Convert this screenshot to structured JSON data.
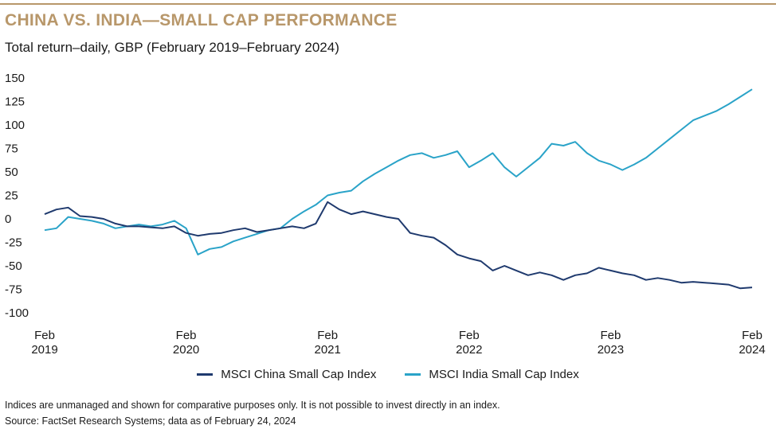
{
  "header": {
    "title": "CHINA VS. INDIA—SMALL CAP PERFORMANCE",
    "subtitle": "Total return–daily, GBP (February 2019–February 2024)"
  },
  "footer": {
    "note": "Indices are unmanaged and shown for comparative purposes only. It is not possible to invest directly in an index.",
    "source": "Source: FactSet Research Systems; data as of February 24, 2024"
  },
  "colors": {
    "china": "#1f3a6e",
    "india": "#2aa3c8",
    "title": "#b8976a"
  },
  "chart_data": {
    "type": "line",
    "title": "CHINA VS. INDIA—SMALL CAP PERFORMANCE",
    "subtitle": "Total return–daily, GBP (February 2019–February 2024)",
    "ylim": [
      -100,
      150
    ],
    "yticks": [
      150,
      125,
      100,
      75,
      50,
      25,
      0,
      -25,
      -50,
      -75,
      -100
    ],
    "xlim": [
      "2019-02",
      "2024-02"
    ],
    "xticks": [
      {
        "x": "2019-02",
        "line1": "Feb",
        "line2": "2019"
      },
      {
        "x": "2020-02",
        "line1": "Feb",
        "line2": "2020"
      },
      {
        "x": "2021-02",
        "line1": "Feb",
        "line2": "2021"
      },
      {
        "x": "2022-02",
        "line1": "Feb",
        "line2": "2022"
      },
      {
        "x": "2023-02",
        "line1": "Feb",
        "line2": "2023"
      },
      {
        "x": "2024-02",
        "line1": "Feb",
        "line2": "2024"
      }
    ],
    "grid": false,
    "legend": "bottom",
    "series": [
      {
        "name": "MSCI China Small Cap Index",
        "points": [
          [
            "2019-02",
            5
          ],
          [
            "2019-03",
            10
          ],
          [
            "2019-04",
            12
          ],
          [
            "2019-05",
            3
          ],
          [
            "2019-06",
            2
          ],
          [
            "2019-07",
            0
          ],
          [
            "2019-08",
            -5
          ],
          [
            "2019-09",
            -8
          ],
          [
            "2019-10",
            -8
          ],
          [
            "2019-11",
            -9
          ],
          [
            "2019-12",
            -10
          ],
          [
            "2020-01",
            -8
          ],
          [
            "2020-02",
            -15
          ],
          [
            "2020-03",
            -18
          ],
          [
            "2020-04",
            -16
          ],
          [
            "2020-05",
            -15
          ],
          [
            "2020-06",
            -12
          ],
          [
            "2020-07",
            -10
          ],
          [
            "2020-08",
            -14
          ],
          [
            "2020-09",
            -12
          ],
          [
            "2020-10",
            -10
          ],
          [
            "2020-11",
            -8
          ],
          [
            "2020-12",
            -10
          ],
          [
            "2021-01",
            -5
          ],
          [
            "2021-02",
            18
          ],
          [
            "2021-03",
            10
          ],
          [
            "2021-04",
            5
          ],
          [
            "2021-05",
            8
          ],
          [
            "2021-06",
            5
          ],
          [
            "2021-07",
            2
          ],
          [
            "2021-08",
            0
          ],
          [
            "2021-09",
            -15
          ],
          [
            "2021-10",
            -18
          ],
          [
            "2021-11",
            -20
          ],
          [
            "2021-12",
            -28
          ],
          [
            "2022-01",
            -38
          ],
          [
            "2022-02",
            -42
          ],
          [
            "2022-03",
            -45
          ],
          [
            "2022-04",
            -55
          ],
          [
            "2022-05",
            -50
          ],
          [
            "2022-06",
            -55
          ],
          [
            "2022-07",
            -60
          ],
          [
            "2022-08",
            -57
          ],
          [
            "2022-09",
            -60
          ],
          [
            "2022-10",
            -65
          ],
          [
            "2022-11",
            -60
          ],
          [
            "2022-12",
            -58
          ],
          [
            "2023-01",
            -52
          ],
          [
            "2023-02",
            -55
          ],
          [
            "2023-03",
            -58
          ],
          [
            "2023-04",
            -60
          ],
          [
            "2023-05",
            -65
          ],
          [
            "2023-06",
            -63
          ],
          [
            "2023-07",
            -65
          ],
          [
            "2023-08",
            -68
          ],
          [
            "2023-09",
            -67
          ],
          [
            "2023-10",
            -68
          ],
          [
            "2023-11",
            -69
          ],
          [
            "2023-12",
            -70
          ],
          [
            "2024-01",
            -74
          ],
          [
            "2024-02",
            -73
          ]
        ]
      },
      {
        "name": "MSCI India Small Cap Index",
        "points": [
          [
            "2019-02",
            -12
          ],
          [
            "2019-03",
            -10
          ],
          [
            "2019-04",
            2
          ],
          [
            "2019-05",
            0
          ],
          [
            "2019-06",
            -2
          ],
          [
            "2019-07",
            -5
          ],
          [
            "2019-08",
            -10
          ],
          [
            "2019-09",
            -8
          ],
          [
            "2019-10",
            -6
          ],
          [
            "2019-11",
            -8
          ],
          [
            "2019-12",
            -6
          ],
          [
            "2020-01",
            -2
          ],
          [
            "2020-02",
            -10
          ],
          [
            "2020-03",
            -38
          ],
          [
            "2020-04",
            -32
          ],
          [
            "2020-05",
            -30
          ],
          [
            "2020-06",
            -24
          ],
          [
            "2020-07",
            -20
          ],
          [
            "2020-08",
            -16
          ],
          [
            "2020-09",
            -12
          ],
          [
            "2020-10",
            -10
          ],
          [
            "2020-11",
            0
          ],
          [
            "2020-12",
            8
          ],
          [
            "2021-01",
            15
          ],
          [
            "2021-02",
            25
          ],
          [
            "2021-03",
            28
          ],
          [
            "2021-04",
            30
          ],
          [
            "2021-05",
            40
          ],
          [
            "2021-06",
            48
          ],
          [
            "2021-07",
            55
          ],
          [
            "2021-08",
            62
          ],
          [
            "2021-09",
            68
          ],
          [
            "2021-10",
            70
          ],
          [
            "2021-11",
            65
          ],
          [
            "2021-12",
            68
          ],
          [
            "2022-01",
            72
          ],
          [
            "2022-02",
            55
          ],
          [
            "2022-03",
            62
          ],
          [
            "2022-04",
            70
          ],
          [
            "2022-05",
            55
          ],
          [
            "2022-06",
            45
          ],
          [
            "2022-07",
            55
          ],
          [
            "2022-08",
            65
          ],
          [
            "2022-09",
            80
          ],
          [
            "2022-10",
            78
          ],
          [
            "2022-11",
            82
          ],
          [
            "2022-12",
            70
          ],
          [
            "2023-01",
            62
          ],
          [
            "2023-02",
            58
          ],
          [
            "2023-03",
            52
          ],
          [
            "2023-04",
            58
          ],
          [
            "2023-05",
            65
          ],
          [
            "2023-06",
            75
          ],
          [
            "2023-07",
            85
          ],
          [
            "2023-08",
            95
          ],
          [
            "2023-09",
            105
          ],
          [
            "2023-10",
            110
          ],
          [
            "2023-11",
            115
          ],
          [
            "2023-12",
            122
          ],
          [
            "2024-01",
            130
          ],
          [
            "2024-02",
            138
          ]
        ]
      }
    ]
  }
}
